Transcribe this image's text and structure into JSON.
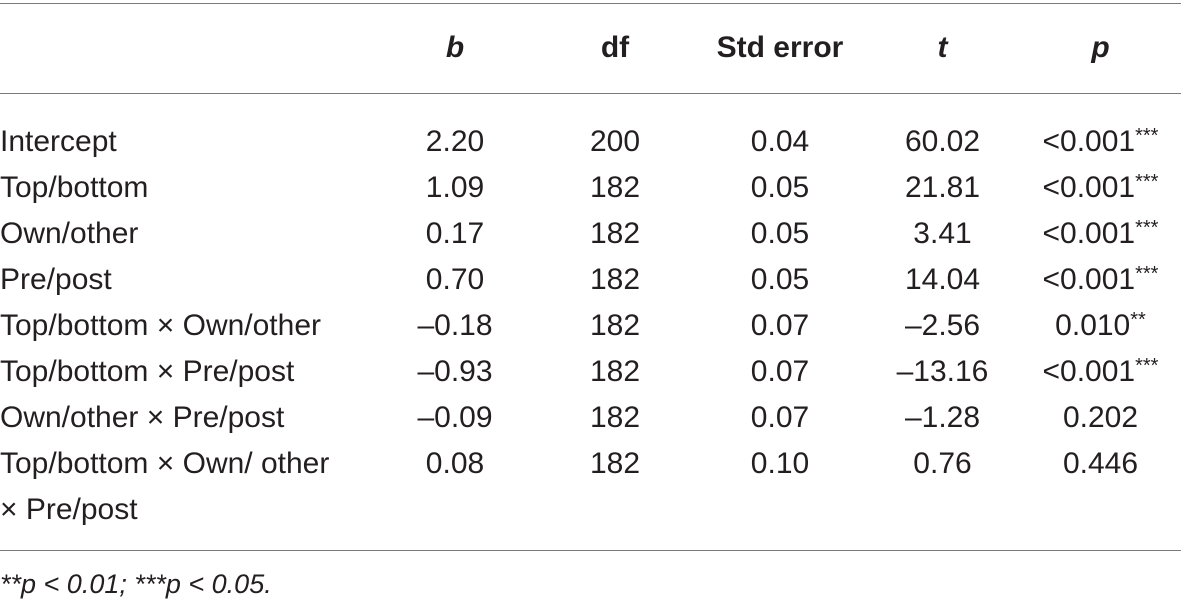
{
  "table": {
    "headers": {
      "label": "",
      "b": "b",
      "df": "df",
      "std_error": "Std error",
      "t": "t",
      "p": "p"
    },
    "rows": [
      {
        "label": "Intercept",
        "b": "2.20",
        "df": "200",
        "std_error": "0.04",
        "t": "60.02",
        "p": "<0.001",
        "sig": "***"
      },
      {
        "label": "Top/bottom",
        "b": "1.09",
        "df": "182",
        "std_error": "0.05",
        "t": "21.81",
        "p": "<0.001",
        "sig": "***"
      },
      {
        "label": "Own/other",
        "b": "0.17",
        "df": "182",
        "std_error": "0.05",
        "t": "3.41",
        "p": "<0.001",
        "sig": "***"
      },
      {
        "label": "Pre/post",
        "b": "0.70",
        "df": "182",
        "std_error": "0.05",
        "t": "14.04",
        "p": "<0.001",
        "sig": "***"
      },
      {
        "label": "Top/bottom × Own/other",
        "b": "–0.18",
        "df": "182",
        "std_error": "0.07",
        "t": "–2.56",
        "p": "0.010",
        "sig": "**"
      },
      {
        "label": "Top/bottom × Pre/post",
        "b": "–0.93",
        "df": "182",
        "std_error": "0.07",
        "t": "–13.16",
        "p": "<0.001",
        "sig": "***"
      },
      {
        "label": "Own/other × Pre/post",
        "b": "–0.09",
        "df": "182",
        "std_error": "0.07",
        "t": "–1.28",
        "p": "0.202",
        "sig": ""
      },
      {
        "label": "Top/bottom × Own/ other × Pre/post",
        "b": "0.08",
        "df": "182",
        "std_error": "0.10",
        "t": "0.76",
        "p": "0.446",
        "sig": ""
      }
    ]
  },
  "footnote": "**p < 0.01; ***p < 0.05."
}
